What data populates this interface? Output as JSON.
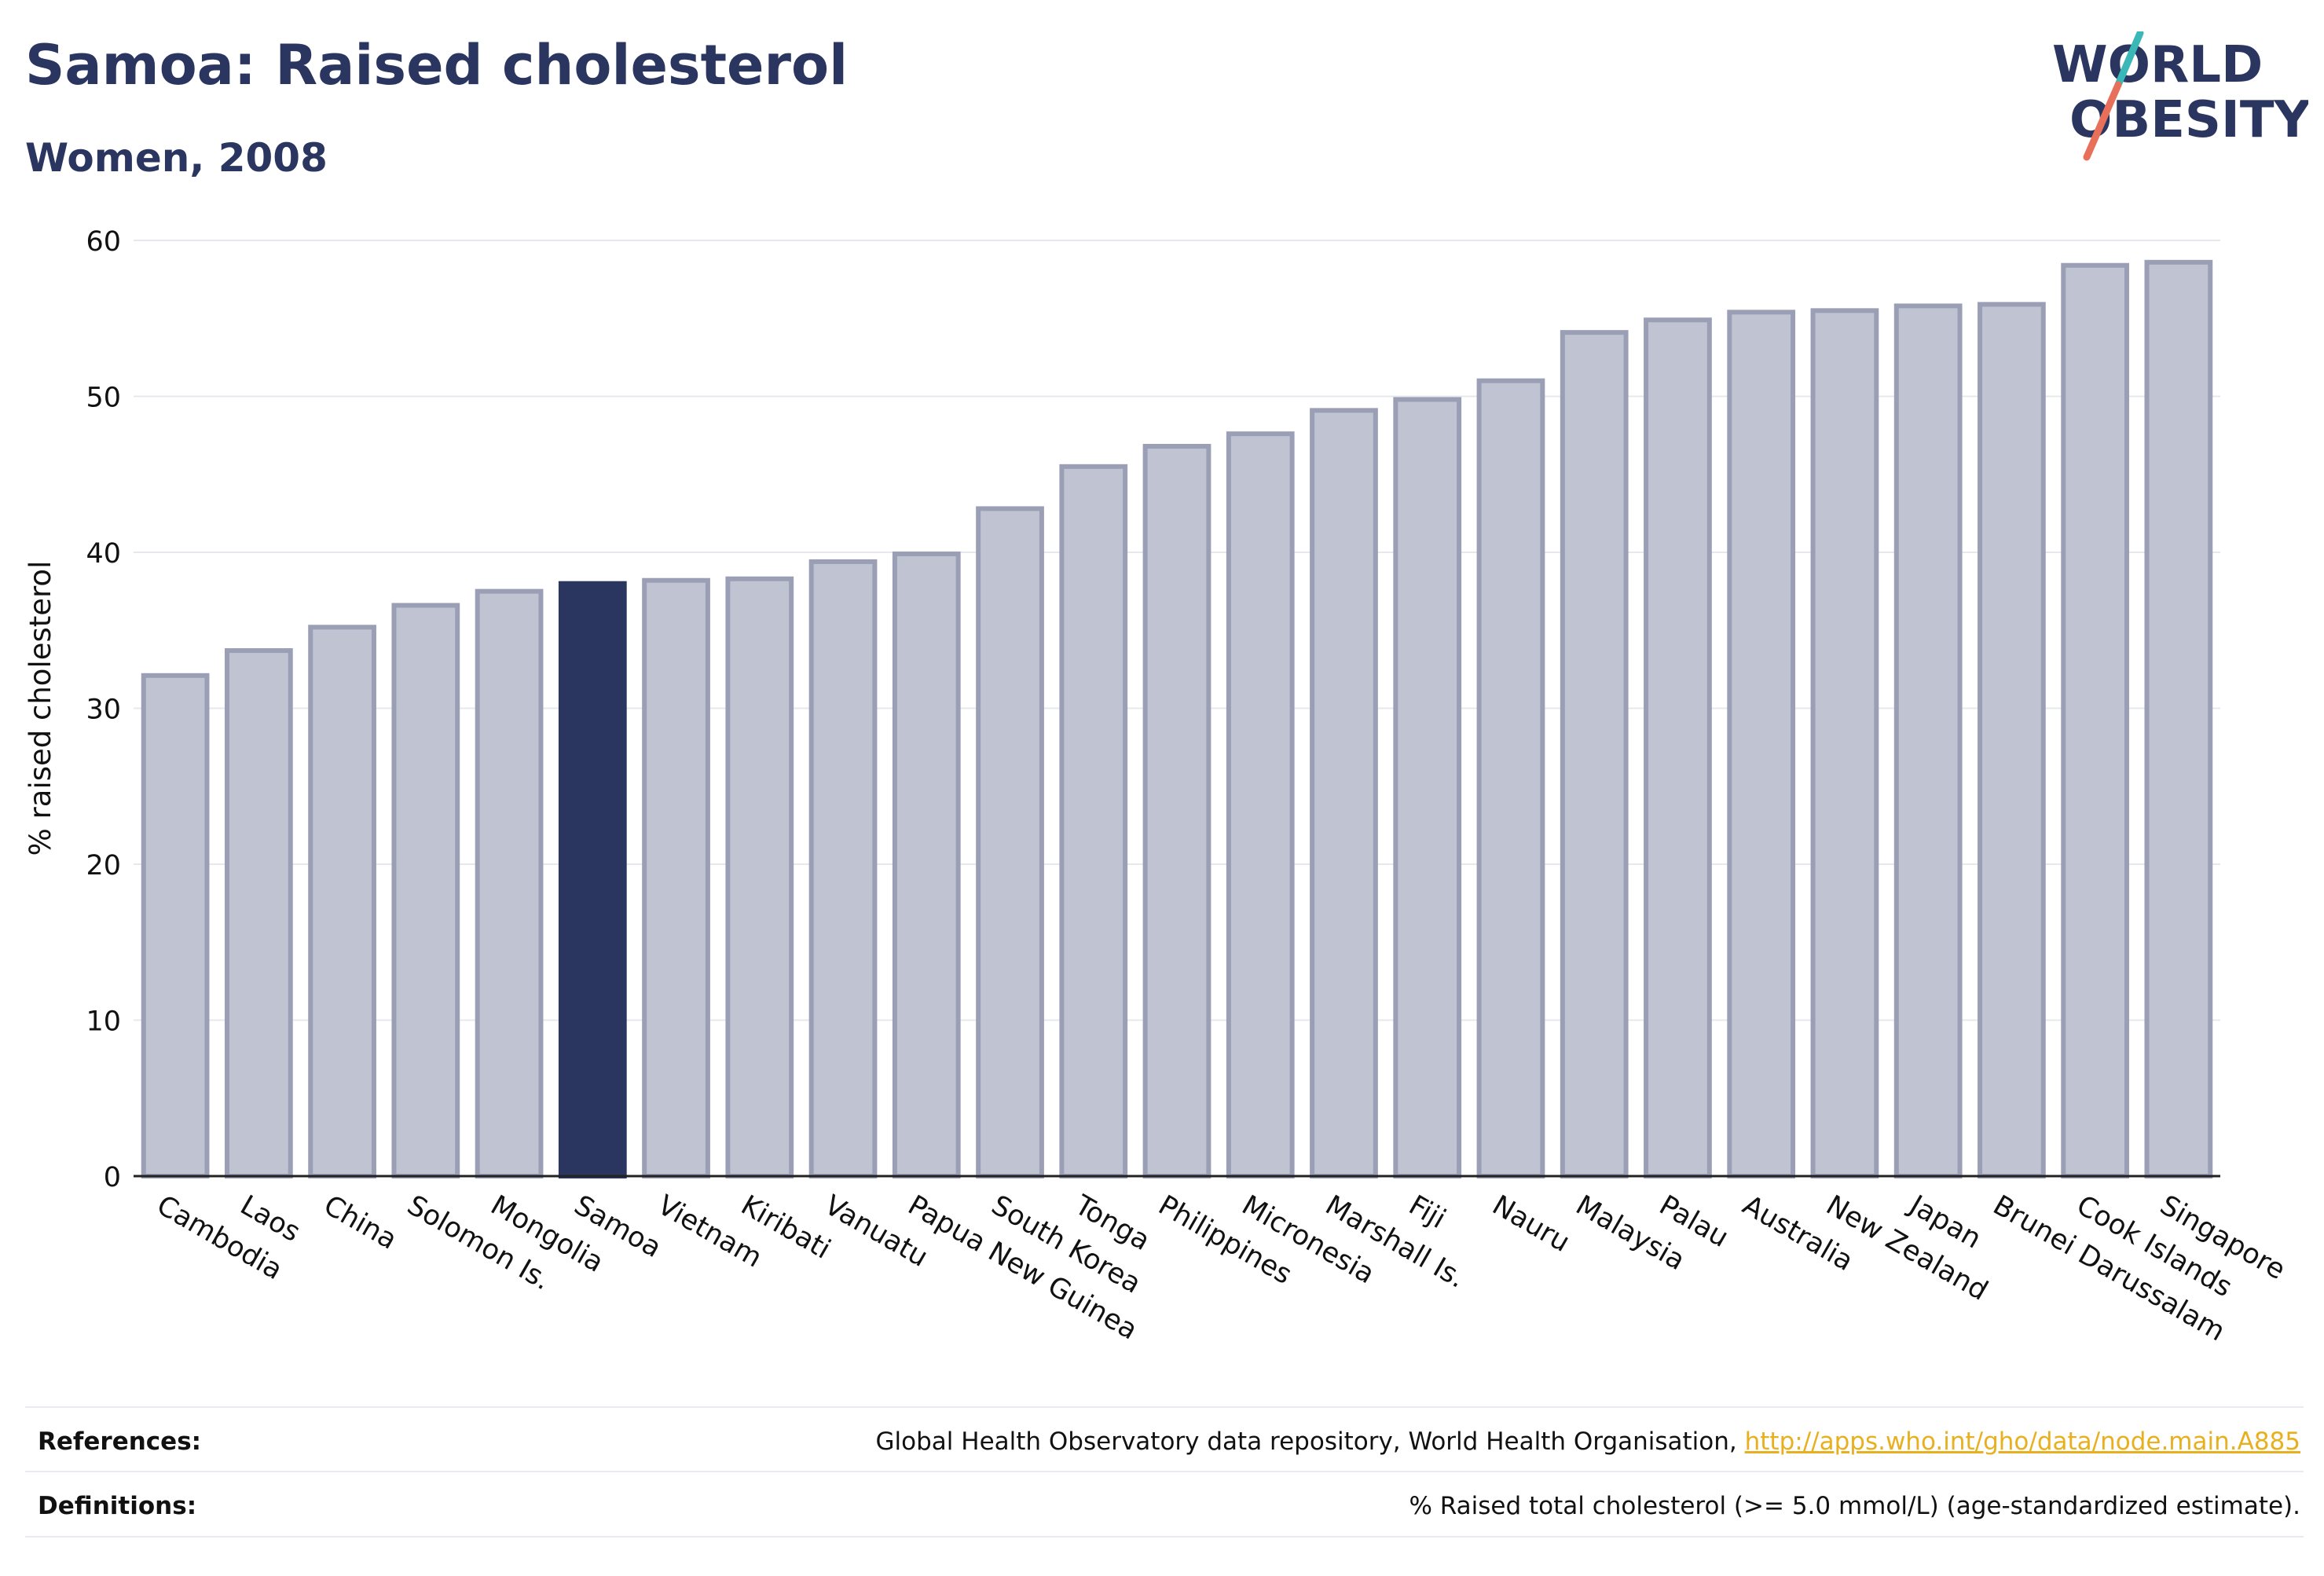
{
  "header": {
    "title": "Samoa: Raised cholesterol",
    "subtitle": "Women, 2008"
  },
  "logo": {
    "text_line1": "WORLD",
    "text_line2": "OBESITY",
    "color_text": "#2a3560",
    "color_slash_top": "#3ab8b8",
    "color_slash_bottom": "#e8705a"
  },
  "colors": {
    "bar_default": "#c0c3d1",
    "bar_border": "#9a9fb6",
    "bar_highlight": "#2a3560",
    "grid": "#e6e8ee",
    "axis": "#222222"
  },
  "chart_data": {
    "type": "bar",
    "highlight": "Samoa",
    "ylabel": "% raised cholesterol",
    "xlabel": "",
    "ylim": [
      0,
      60
    ],
    "yticks": [
      0,
      10,
      20,
      30,
      40,
      50,
      60
    ],
    "grid": true,
    "categories": [
      "Cambodia",
      "Laos",
      "China",
      "Solomon Is.",
      "Mongolia",
      "Samoa",
      "Vietnam",
      "Kiribati",
      "Vanuatu",
      "Papua New Guinea",
      "South Korea",
      "Tonga",
      "Philippines",
      "Micronesia",
      "Marshall Is.",
      "Fiji",
      "Nauru",
      "Malaysia",
      "Palau",
      "Australia",
      "New Zealand",
      "Japan",
      "Brunei Darussalam",
      "Cook Islands",
      "Singapore"
    ],
    "values": [
      32.1,
      33.7,
      35.2,
      36.6,
      37.5,
      38.0,
      38.2,
      38.3,
      39.4,
      39.9,
      42.8,
      45.5,
      46.8,
      47.6,
      49.1,
      49.8,
      51.0,
      54.1,
      54.9,
      55.4,
      55.5,
      55.8,
      55.9,
      58.4,
      58.6
    ]
  },
  "footer": {
    "references_label": "References:",
    "references_text": "Global Health Observatory data repository, World Health Organisation, ",
    "references_link": "http://apps.who.int/gho/data/node.main.A885",
    "definitions_label": "Definitions:",
    "definitions_text": "% Raised total cholesterol (>= 5.0 mmol/L) (age-standardized estimate)."
  }
}
